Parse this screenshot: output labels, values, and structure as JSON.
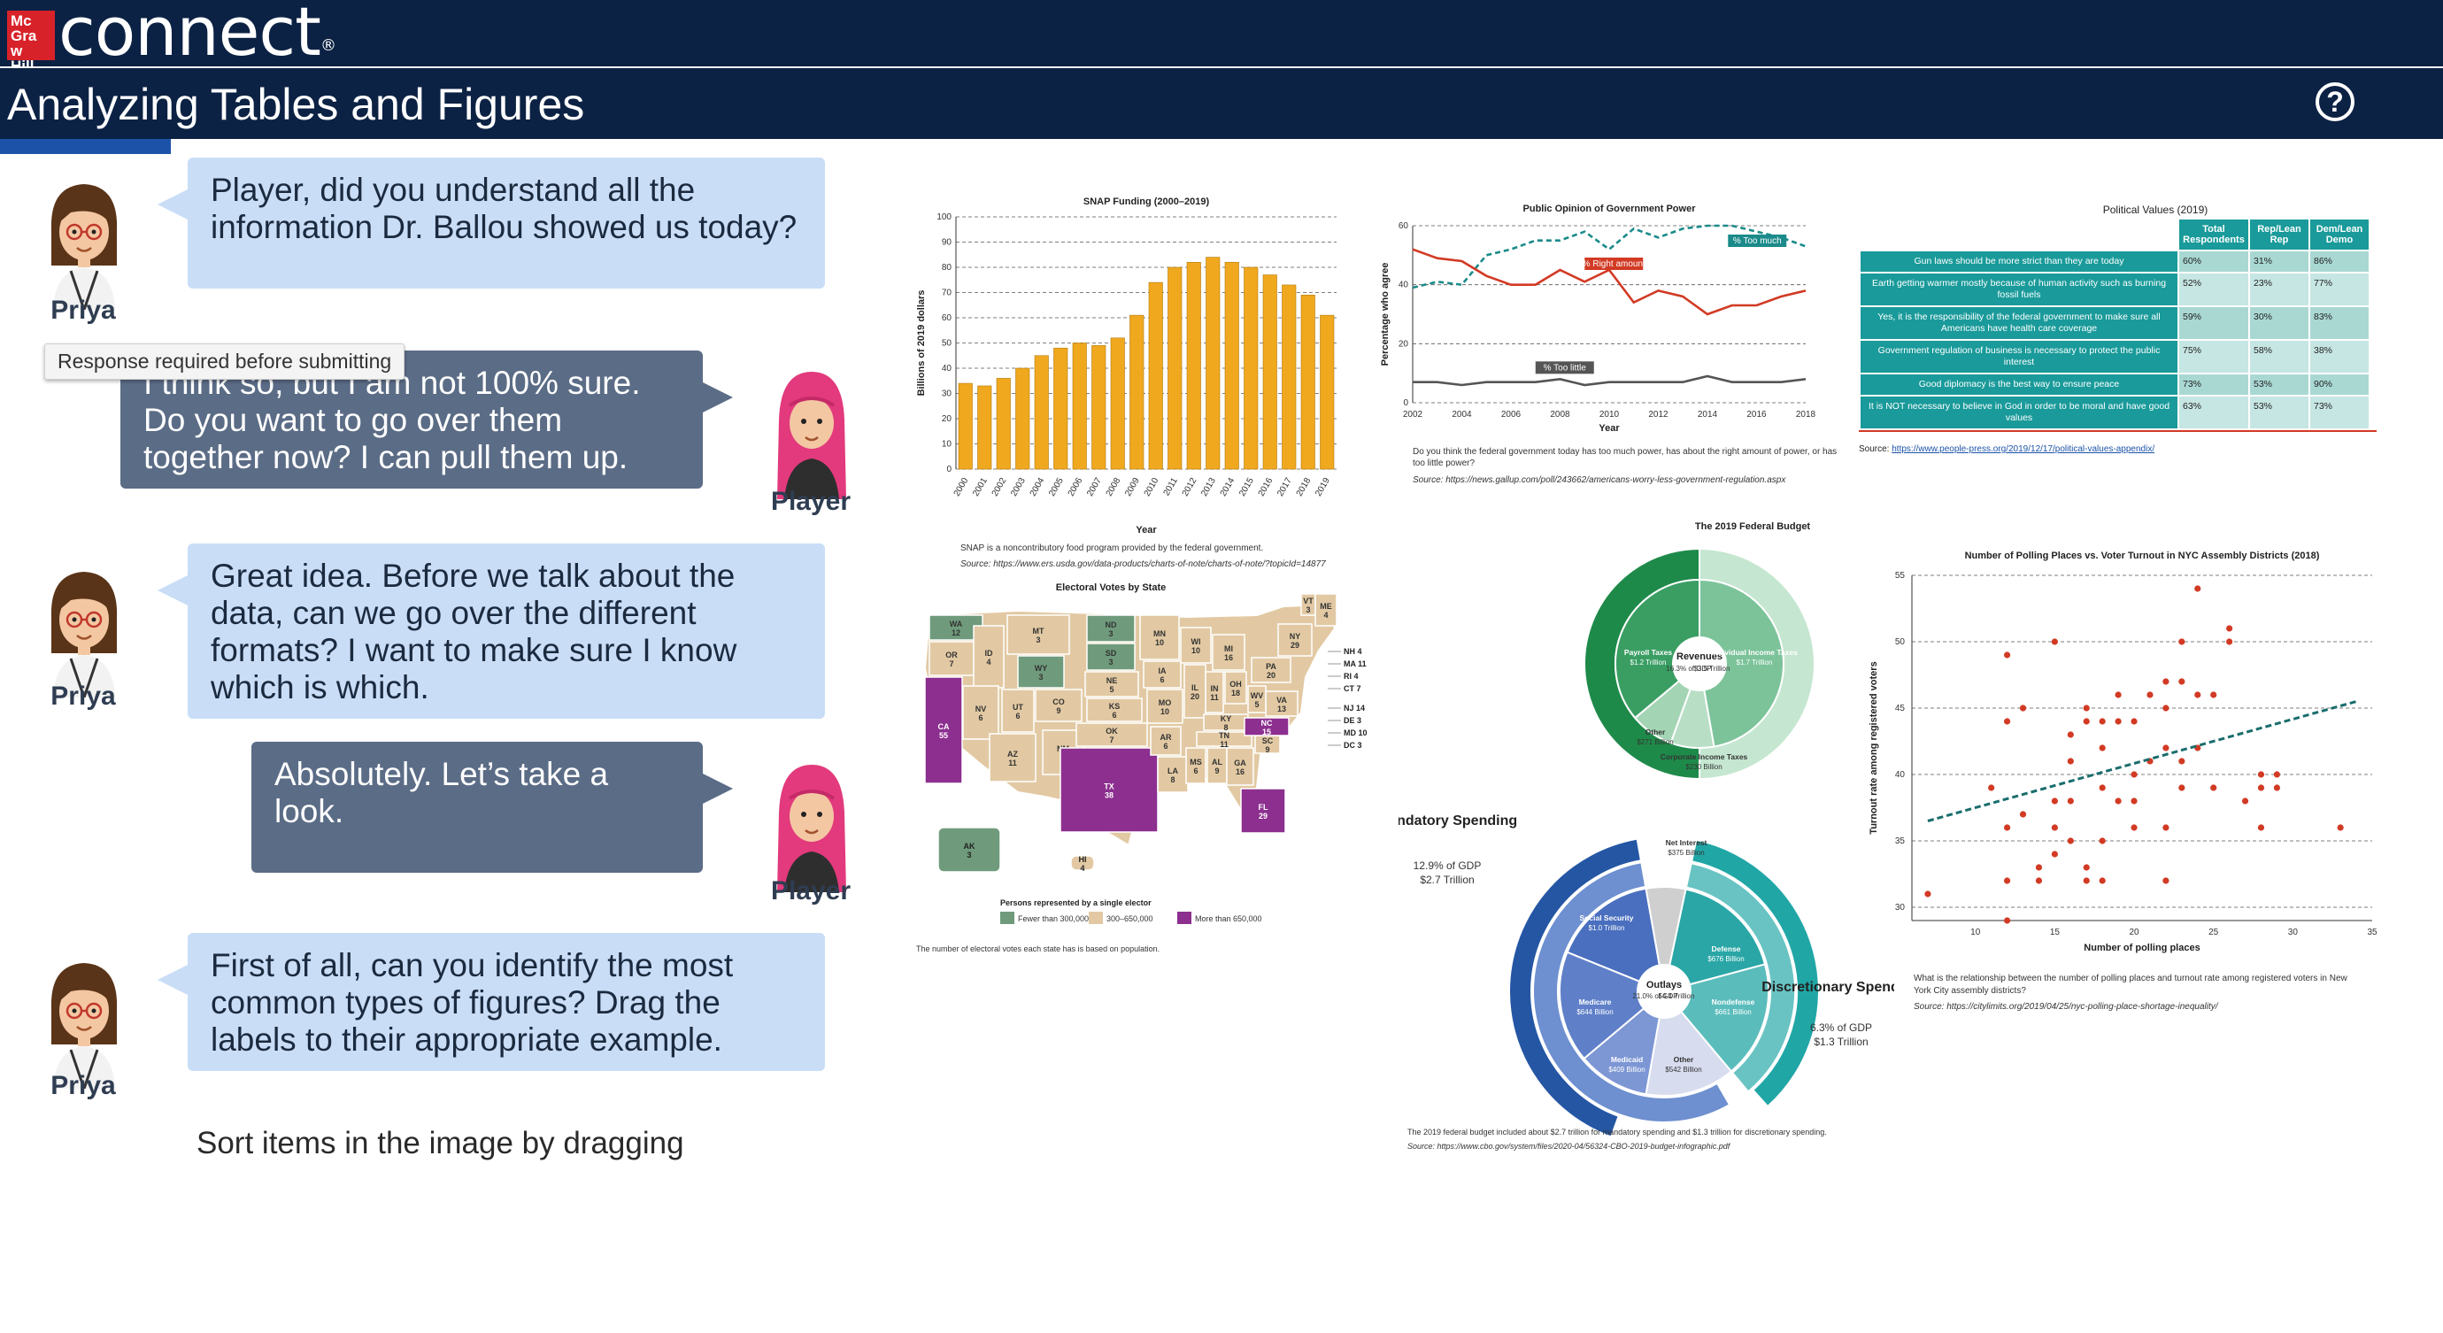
{
  "app": {
    "brand_box": "Mc Graw Hill",
    "brand_word": "connect",
    "brand_mark": "®"
  },
  "page": {
    "title": "Analyzing Tables and Figures",
    "help_icon": "help-icon",
    "help_glyph": "?"
  },
  "chat": [
    {
      "speaker": "Priya",
      "text": "Player, did you understand all the information Dr. Ballou showed us today?"
    },
    {
      "speaker": "Player",
      "text": "I think so, but I am not 100% sure.  Do you want to go over them together now?  I can pull them up."
    },
    {
      "speaker": "Priya",
      "text": "Great idea.  Before we talk about the data, can we go over the different formats?  I want to make sure I know which is which."
    },
    {
      "speaker": "Player",
      "text": "Absolutely.  Let’s take a look."
    },
    {
      "speaker": "Priya",
      "text": "First of all, can you identify the most common types of figures? Drag the labels to their appropriate example."
    }
  ],
  "tooltip": "Response required before submitting",
  "instruction": "Sort items in the image by dragging",
  "figures": {
    "snap": {
      "chart_data": {
        "type": "bar",
        "title": "SNAP Funding (2000–2019)",
        "xlabel": "Year",
        "ylabel": "Billions of 2019 dollars",
        "ylim": [
          0,
          100
        ],
        "yticks": [
          0,
          10,
          20,
          30,
          40,
          50,
          60,
          70,
          80,
          90,
          100
        ],
        "categories": [
          "2000",
          "2001",
          "2002",
          "2003",
          "2004",
          "2005",
          "2006",
          "2007",
          "2008",
          "2009",
          "2010",
          "2011",
          "2012",
          "2013",
          "2014",
          "2015",
          "2016",
          "2017",
          "2018",
          "2019"
        ],
        "values": [
          34,
          33,
          36,
          40,
          45,
          48,
          50,
          49,
          52,
          61,
          74,
          80,
          82,
          84,
          82,
          80,
          77,
          73,
          69,
          61
        ],
        "color": "#f0a81e"
      },
      "note": "SNAP is a noncontributory food program provided by the federal government.",
      "source": "Source: https://www.ers.usda.gov/data-products/charts-of-note/charts-of-note/?topicId=14877"
    },
    "gov": {
      "chart_data": {
        "type": "line",
        "title": "Public Opinion of Government Power",
        "xlabel": "Year",
        "ylabel": "Percentage who agree",
        "ylim": [
          0,
          60
        ],
        "yticks": [
          0,
          20,
          40,
          60
        ],
        "xticks": [
          "2002",
          "2004",
          "2006",
          "2008",
          "2010",
          "2012",
          "2014",
          "2016",
          "2018"
        ],
        "x": [
          2002,
          2003,
          2004,
          2005,
          2006,
          2007,
          2008,
          2009,
          2010,
          2011,
          2012,
          2013,
          2014,
          2015,
          2016,
          2017,
          2018
        ],
        "series": [
          {
            "name": "% Too much",
            "values": [
              39,
              41,
              40,
              50,
              52,
              55,
              55,
              58,
              52,
              59,
              56,
              59,
              60,
              60,
              58,
              56,
              53
            ],
            "color": "#1b8a8a",
            "dash": "6 4"
          },
          {
            "name": "% Right amount",
            "values": [
              52,
              49,
              48,
              43,
              40,
              40,
              45,
              41,
              45,
              34,
              38,
              36,
              30,
              33,
              33,
              36,
              38
            ],
            "color": "#d23a24",
            "dash": ""
          },
          {
            "name": "% Too little",
            "values": [
              7,
              7,
              6,
              7,
              7,
              7,
              8,
              6,
              7,
              7,
              7,
              7,
              9,
              7,
              7,
              7,
              8
            ],
            "color": "#555555",
            "dash": ""
          }
        ]
      },
      "note": "Do you think the federal government today has too much power, has about the right amount of power, or has too little power?",
      "source": "Source: https://news.gallup.com/poll/243662/americans-worry-less-government-regulation.aspx"
    },
    "pol": {
      "title": "Political Values (2019)",
      "headers": [
        "Total Respondents",
        "Rep/Lean Rep",
        "Dem/Lean Demo"
      ],
      "rows": [
        {
          "label": "Gun laws should be more strict than they are today",
          "v": [
            "60%",
            "31%",
            "86%"
          ]
        },
        {
          "label": "Earth getting warmer mostly because of human activity such as burning fossil fuels",
          "v": [
            "52%",
            "23%",
            "77%"
          ]
        },
        {
          "label": "Yes, it is the responsibility of the federal government to make sure all Americans have health care coverage",
          "v": [
            "59%",
            "30%",
            "83%"
          ]
        },
        {
          "label": "Government regulation of business is necessary to protect the public interest",
          "v": [
            "75%",
            "58%",
            "38%"
          ]
        },
        {
          "label": "Good diplomacy is the best way to ensure peace",
          "v": [
            "73%",
            "53%",
            "90%"
          ]
        },
        {
          "label": "It is NOT necessary to believe in God in order to be moral and have good values",
          "v": [
            "63%",
            "53%",
            "73%"
          ]
        }
      ],
      "source_label": "Source:",
      "source_link": "https://www.people-press.org/2019/12/17/political-values-appendix/"
    },
    "map": {
      "title": "Electoral Votes by State",
      "legend_title": "Persons represented by a single elector",
      "legend": [
        {
          "label": "Fewer than 300,000",
          "color": "#6f9b7c"
        },
        {
          "label": "300–650,000",
          "color": "#e2c9a3"
        },
        {
          "label": "More than 650,000",
          "color": "#8c2f8f"
        }
      ],
      "states": [
        {
          "abbr": "WA",
          "votes": "12"
        },
        {
          "abbr": "OR",
          "votes": "7"
        },
        {
          "abbr": "CA",
          "votes": "55"
        },
        {
          "abbr": "ID",
          "votes": "4"
        },
        {
          "abbr": "NV",
          "votes": "6"
        },
        {
          "abbr": "MT",
          "votes": "3"
        },
        {
          "abbr": "WY",
          "votes": "3"
        },
        {
          "abbr": "UT",
          "votes": "6"
        },
        {
          "abbr": "AZ",
          "votes": "11"
        },
        {
          "abbr": "CO",
          "votes": "9"
        },
        {
          "abbr": "NM",
          "votes": "5"
        },
        {
          "abbr": "ND",
          "votes": "3"
        },
        {
          "abbr": "SD",
          "votes": "3"
        },
        {
          "abbr": "NE",
          "votes": "5"
        },
        {
          "abbr": "KS",
          "votes": "6"
        },
        {
          "abbr": "OK",
          "votes": "7"
        },
        {
          "abbr": "TX",
          "votes": "38"
        },
        {
          "abbr": "MN",
          "votes": "10"
        },
        {
          "abbr": "IA",
          "votes": "6"
        },
        {
          "abbr": "MO",
          "votes": "10"
        },
        {
          "abbr": "AR",
          "votes": "6"
        },
        {
          "abbr": "LA",
          "votes": "8"
        },
        {
          "abbr": "WI",
          "votes": "10"
        },
        {
          "abbr": "IL",
          "votes": "20"
        },
        {
          "abbr": "MI",
          "votes": "16"
        },
        {
          "abbr": "IN",
          "votes": "11"
        },
        {
          "abbr": "OH",
          "votes": "18"
        },
        {
          "abbr": "KY",
          "votes": "8"
        },
        {
          "abbr": "TN",
          "votes": "11"
        },
        {
          "abbr": "MS",
          "votes": "6"
        },
        {
          "abbr": "AL",
          "votes": "9"
        },
        {
          "abbr": "GA",
          "votes": "16"
        },
        {
          "abbr": "FL",
          "votes": "29"
        },
        {
          "abbr": "SC",
          "votes": "9"
        },
        {
          "abbr": "NC",
          "votes": "15"
        },
        {
          "abbr": "VA",
          "votes": "13"
        },
        {
          "abbr": "WV",
          "votes": "5"
        },
        {
          "abbr": "PA",
          "votes": "20"
        },
        {
          "abbr": "NY",
          "votes": "29"
        },
        {
          "abbr": "VT",
          "votes": "3"
        },
        {
          "abbr": "ME",
          "votes": "4"
        },
        {
          "abbr": "AK",
          "votes": "3"
        },
        {
          "abbr": "HI",
          "votes": "4"
        }
      ],
      "side_labels": [
        "NH 4",
        "MA 11",
        "RI 4",
        "CT 7",
        "NJ 14",
        "DE 3",
        "MD 10",
        "DC 3"
      ],
      "note": "The number of electoral votes each state has is based on population."
    },
    "budget": {
      "title": "The 2019 Federal Budget",
      "revenues": {
        "label": "Revenues",
        "pct": "16.3% of GDP",
        "amount": "$3.5 Trillion"
      },
      "rev_parts": [
        {
          "label": "Payroll Taxes",
          "amount": "$1.2 Trillion"
        },
        {
          "label": "Individual Income Taxes",
          "amount": "$1.7 Trillion"
        },
        {
          "label": "Other",
          "amount": "$271 Billion"
        },
        {
          "label": "Corporate Income Taxes",
          "amount": "$230 Billion"
        }
      ],
      "mandatory": {
        "label": "Mandatory Spending",
        "pct": "12.9% of GDP",
        "amount": "$2.7 Trillion"
      },
      "discretionary": {
        "label": "Discretionary Spending",
        "pct": "6.3% of GDP",
        "amount": "$1.3 Trillion"
      },
      "outlays": {
        "label": "Outlays",
        "pct": "21.0% of GDP",
        "amount": "$4.4 Trillion"
      },
      "out_parts": [
        {
          "label": "Social Security",
          "amount": "$1.0 Trillion"
        },
        {
          "label": "Net Interest",
          "amount": "$375 Billion"
        },
        {
          "label": "Defense",
          "amount": "$676 Billion"
        },
        {
          "label": "Nondefense",
          "amount": "$661 Billion"
        },
        {
          "label": "Other",
          "amount": "$542 Billion"
        },
        {
          "label": "Medicaid",
          "amount": "$409 Billion"
        },
        {
          "label": "Medicare",
          "amount": "$644 Billion"
        }
      ],
      "note": "The 2019 federal budget included about $2.7 trillion for mandatory spending and $1.3 trillion for discretionary spending.",
      "source": "Source: https://www.cbo.gov/system/files/2020-04/56324-CBO-2019-budget-infographic.pdf"
    },
    "poll": {
      "chart_data": {
        "type": "scatter",
        "title": "Number of Polling Places vs. Voter Turnout in NYC Assembly Districts (2018)",
        "xlabel": "Number of polling places",
        "ylabel": "Turnout rate among registered voters",
        "xlim": [
          6,
          35
        ],
        "ylim": [
          29,
          55
        ],
        "xticks": [
          10,
          15,
          20,
          25,
          30,
          35
        ],
        "yticks": [
          30,
          35,
          40,
          45,
          50,
          55
        ],
        "points": [
          [
            7,
            31
          ],
          [
            11,
            39
          ],
          [
            12,
            49
          ],
          [
            12,
            44
          ],
          [
            12,
            36
          ],
          [
            12,
            32
          ],
          [
            12,
            29
          ],
          [
            13,
            45
          ],
          [
            13,
            37
          ],
          [
            14,
            33
          ],
          [
            14,
            32
          ],
          [
            15,
            38
          ],
          [
            15,
            50
          ],
          [
            15,
            36
          ],
          [
            15,
            34
          ],
          [
            16,
            43
          ],
          [
            16,
            41
          ],
          [
            16,
            38
          ],
          [
            16,
            35
          ],
          [
            17,
            45
          ],
          [
            17,
            44
          ],
          [
            17,
            33
          ],
          [
            17,
            32
          ],
          [
            18,
            44
          ],
          [
            18,
            42
          ],
          [
            18,
            39
          ],
          [
            18,
            35
          ],
          [
            18,
            32
          ],
          [
            19,
            46
          ],
          [
            19,
            44
          ],
          [
            19,
            38
          ],
          [
            20,
            44
          ],
          [
            20,
            40
          ],
          [
            20,
            38
          ],
          [
            20,
            36
          ],
          [
            21,
            46
          ],
          [
            21,
            41
          ],
          [
            22,
            45
          ],
          [
            22,
            42
          ],
          [
            22,
            36
          ],
          [
            22,
            32
          ],
          [
            22,
            47
          ],
          [
            23,
            50
          ],
          [
            23,
            47
          ],
          [
            23,
            41
          ],
          [
            23,
            39
          ],
          [
            24,
            54
          ],
          [
            24,
            46
          ],
          [
            24,
            42
          ],
          [
            25,
            46
          ],
          [
            25,
            39
          ],
          [
            26,
            51
          ],
          [
            26,
            50
          ],
          [
            27,
            38
          ],
          [
            28,
            40
          ],
          [
            28,
            39
          ],
          [
            28,
            36
          ],
          [
            29,
            40
          ],
          [
            29,
            39
          ],
          [
            33,
            36
          ]
        ],
        "trend": [
          [
            7,
            36.5
          ],
          [
            34,
            45.5
          ]
        ],
        "point_color": "#d23a24"
      },
      "note": "What is the relationship between the number of polling places and turnout rate among registered voters in New York City assembly districts?",
      "source": "Source: https://citylimits.org/2019/04/25/nyc-polling-place-shortage-inequality/"
    }
  }
}
